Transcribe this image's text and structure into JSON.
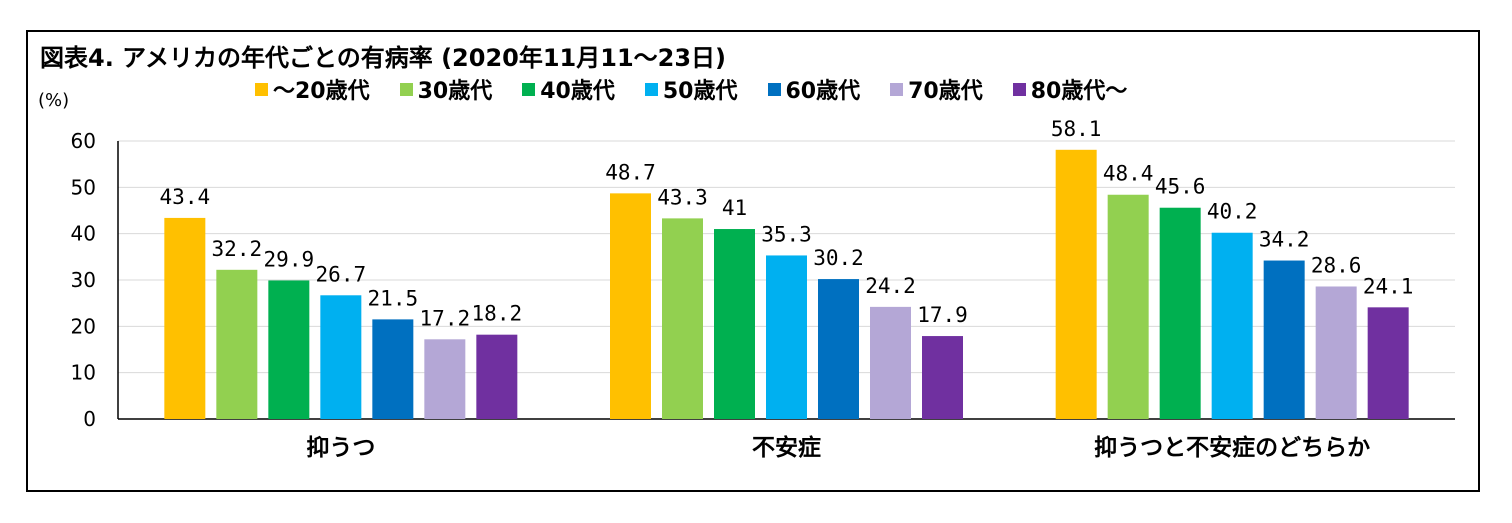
{
  "title": "図表4. アメリカの年代ごとの有病率 (2020年11月11～23日)",
  "unit_label": "(%)",
  "chart_data": {
    "type": "bar",
    "categories": [
      "抑うつ",
      "不安症",
      "抑うつと不安症のどちらか"
    ],
    "series": [
      {
        "name": "～20歳代",
        "color": "#FFC000",
        "values": [
          43.4,
          48.7,
          58.1
        ],
        "labels": [
          "43.4",
          "48.7",
          "58.1"
        ]
      },
      {
        "name": "30歳代",
        "color": "#92D050",
        "values": [
          32.2,
          43.3,
          48.4
        ],
        "labels": [
          "32.2",
          "43.3",
          "48.4"
        ]
      },
      {
        "name": "40歳代",
        "color": "#00B050",
        "values": [
          29.9,
          41,
          45.6
        ],
        "labels": [
          "29.9",
          "41",
          "45.6"
        ]
      },
      {
        "name": "50歳代",
        "color": "#00B0F0",
        "values": [
          26.7,
          35.3,
          40.2
        ],
        "labels": [
          "26.7",
          "35.3",
          "40.2"
        ]
      },
      {
        "name": "60歳代",
        "color": "#0070C0",
        "values": [
          21.5,
          30.2,
          34.2
        ],
        "labels": [
          "21.5",
          "30.2",
          "34.2"
        ]
      },
      {
        "name": "70歳代",
        "color": "#B4A7D6",
        "values": [
          17.2,
          24.2,
          28.6
        ],
        "labels": [
          "17.2",
          "24.2",
          "28.6"
        ]
      },
      {
        "name": "80歳代～",
        "color": "#7030A0",
        "values": [
          18.2,
          17.9,
          24.1
        ],
        "labels": [
          "18.2",
          "17.9",
          "24.1"
        ]
      }
    ],
    "ylim": [
      0,
      60
    ],
    "yticks": [
      "0",
      "10",
      "20",
      "30",
      "40",
      "50",
      "60"
    ],
    "grid": true,
    "legend_position": "top"
  }
}
